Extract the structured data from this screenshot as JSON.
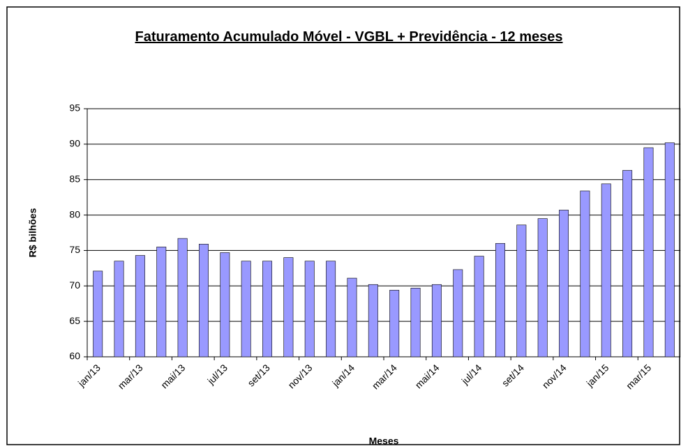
{
  "chart_data": {
    "type": "bar",
    "title": "Faturamento Acumulado Móvel - VGBL + Previdência - 12 meses",
    "x_label": "Meses",
    "y_label": "R$ bilhões",
    "categories": [
      "jan/13",
      null,
      "mar/13",
      null,
      "mai/13",
      null,
      "jul/13",
      null,
      "set/13",
      null,
      "nov/13",
      null,
      "jan/14",
      null,
      "mar/14",
      null,
      "mai/14",
      null,
      "jul/14",
      null,
      "set/14",
      null,
      "nov/14",
      null,
      "jan/15",
      null,
      "mar/15",
      null
    ],
    "values": [
      72.1,
      73.5,
      74.3,
      75.5,
      76.7,
      75.9,
      74.7,
      73.5,
      73.5,
      74.0,
      73.5,
      73.5,
      71.1,
      70.2,
      69.4,
      69.7,
      70.2,
      72.3,
      74.2,
      76.0,
      78.6,
      79.5,
      80.7,
      83.4,
      84.4,
      86.3,
      89.5,
      90.2
    ],
    "color": "#9999ff",
    "ylim": [
      60,
      95
    ],
    "yticks": [
      60,
      65,
      70,
      75,
      80,
      85,
      90,
      95
    ],
    "grid": true
  }
}
